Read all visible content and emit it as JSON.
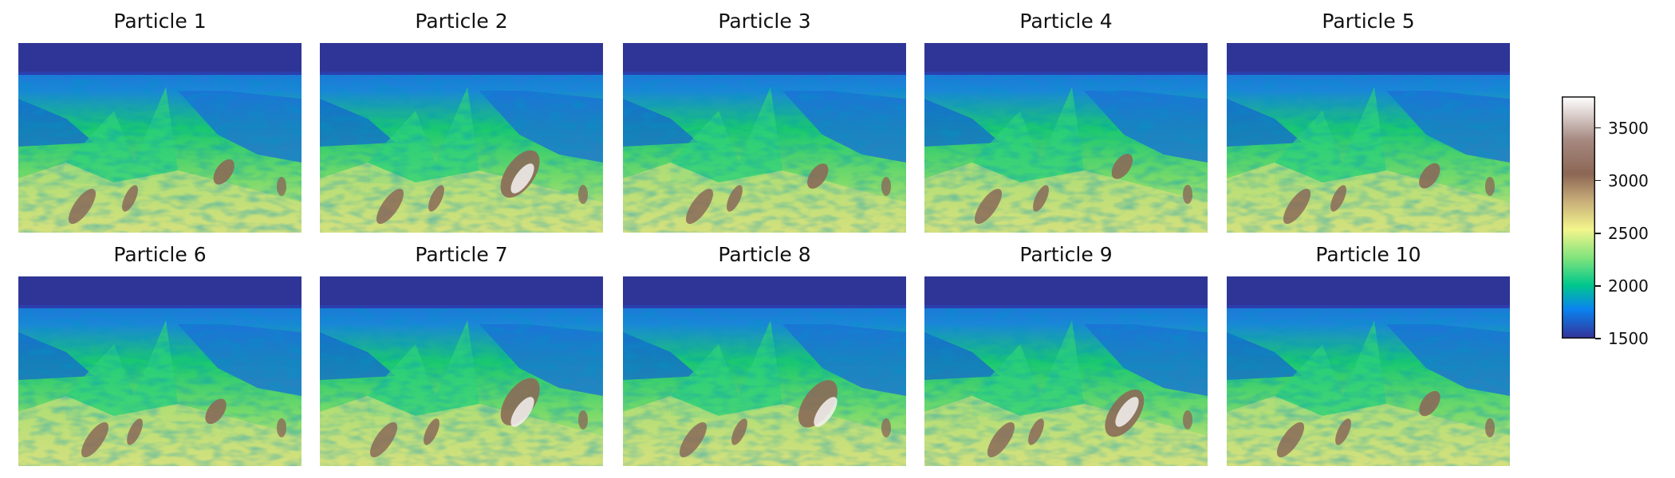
{
  "chart_data": {
    "type": "heatmap",
    "colormap": "terrain",
    "panels": [
      {
        "title": "Particle 1"
      },
      {
        "title": "Particle 2"
      },
      {
        "title": "Particle 3"
      },
      {
        "title": "Particle 4"
      },
      {
        "title": "Particle 5"
      },
      {
        "title": "Particle 6"
      },
      {
        "title": "Particle 7"
      },
      {
        "title": "Particle 8"
      },
      {
        "title": "Particle 9"
      },
      {
        "title": "Particle 10"
      }
    ],
    "colorbar": {
      "range": [
        1500,
        3800
      ],
      "ticks": [
        "1500",
        "2000",
        "2500",
        "3000",
        "3500"
      ],
      "tick_values": [
        1500,
        2000,
        2500,
        3000,
        3500
      ]
    },
    "colors": {
      "water": "#2f3596",
      "shallow": "#1f5fd6",
      "mid": "#19c870",
      "deep": "#e0e282",
      "high": "#8b6a58",
      "max": "#f6f2f2"
    }
  }
}
